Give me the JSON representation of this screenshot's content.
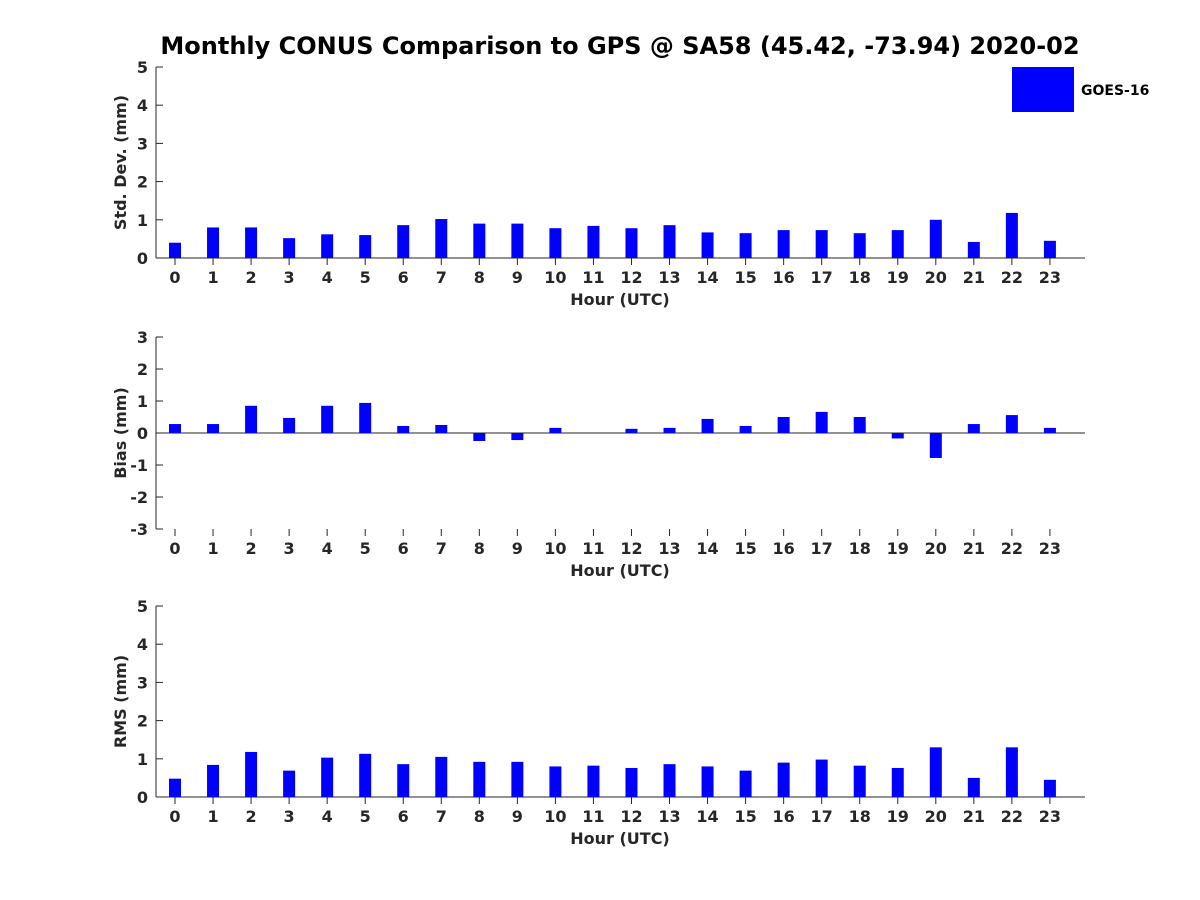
{
  "chart_data": {
    "type": "bar",
    "title": "Monthly CONUS Comparison to GPS @ SA58 (45.42, -73.94) 2020-02",
    "colors": {
      "bar": "#0000ff",
      "axis": "#262626"
    },
    "legend": {
      "entries": [
        "GOES-16"
      ],
      "placement": "top-right"
    },
    "categories": [
      "0",
      "1",
      "2",
      "3",
      "4",
      "5",
      "6",
      "7",
      "8",
      "9",
      "10",
      "11",
      "12",
      "13",
      "14",
      "15",
      "16",
      "17",
      "18",
      "19",
      "20",
      "21",
      "22",
      "23"
    ],
    "panels": [
      {
        "xlabel": "Hour (UTC)",
        "ylabel": "Std. Dev. (mm)",
        "ylim": [
          0,
          5
        ],
        "yticks": [
          "0",
          "1",
          "2",
          "3",
          "4",
          "5"
        ],
        "series": [
          {
            "name": "GOES-16",
            "values": [
              0.4,
              0.8,
              0.8,
              0.52,
              0.62,
              0.6,
              0.86,
              1.02,
              0.9,
              0.9,
              0.78,
              0.84,
              0.78,
              0.86,
              0.67,
              0.65,
              0.73,
              0.73,
              0.65,
              0.73,
              1.0,
              0.42,
              1.18,
              0.45
            ]
          }
        ]
      },
      {
        "xlabel": "Hour (UTC)",
        "ylabel": "Bias (mm)",
        "ylim": [
          -3,
          3
        ],
        "yticks": [
          "-3",
          "-2",
          "-1",
          "0",
          "1",
          "2",
          "3"
        ],
        "series": [
          {
            "name": "GOES-16",
            "values": [
              0.28,
              0.28,
              0.85,
              0.47,
              0.85,
              0.94,
              0.22,
              0.25,
              -0.25,
              -0.22,
              0.16,
              0.0,
              0.13,
              0.16,
              0.44,
              0.22,
              0.5,
              0.66,
              0.5,
              -0.17,
              -0.78,
              0.28,
              0.56,
              0.16
            ]
          }
        ]
      },
      {
        "xlabel": "Hour (UTC)",
        "ylabel": "RMS (mm)",
        "ylim": [
          0,
          5
        ],
        "yticks": [
          "0",
          "1",
          "2",
          "3",
          "4",
          "5"
        ],
        "series": [
          {
            "name": "GOES-16",
            "values": [
              0.48,
              0.84,
              1.18,
              0.69,
              1.03,
              1.13,
              0.86,
              1.05,
              0.92,
              0.92,
              0.8,
              0.82,
              0.76,
              0.86,
              0.8,
              0.69,
              0.9,
              0.98,
              0.82,
              0.76,
              1.3,
              0.5,
              1.3,
              0.45
            ]
          }
        ]
      }
    ]
  }
}
